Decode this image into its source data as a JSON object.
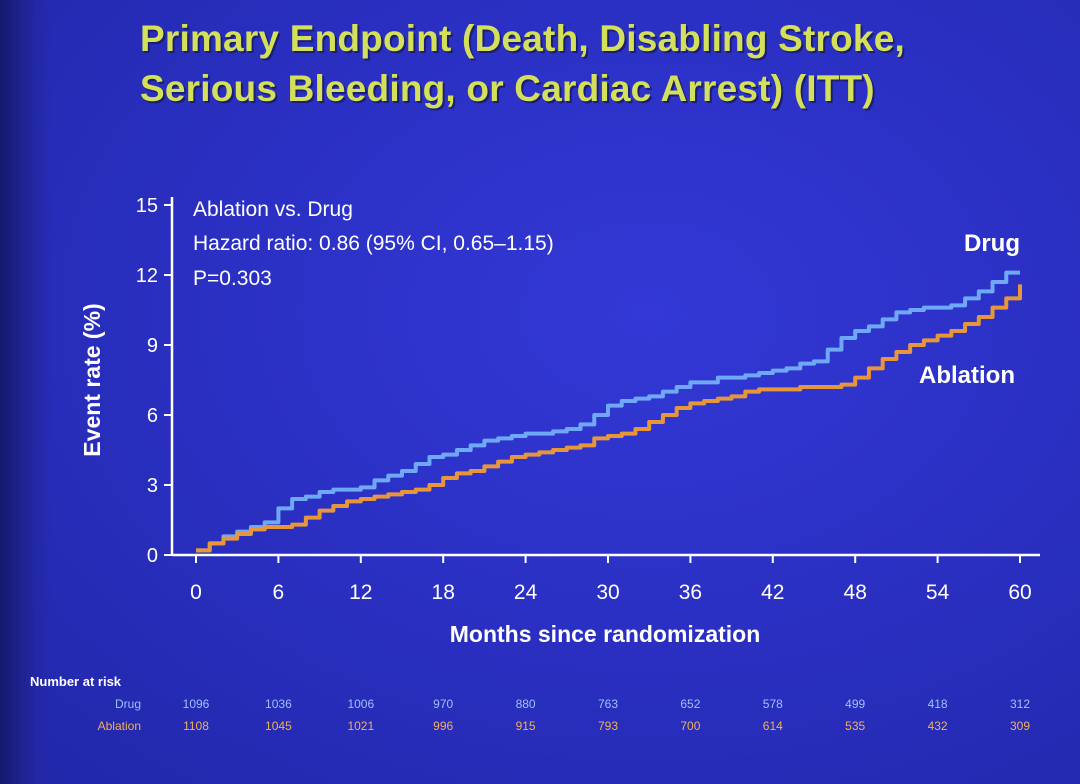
{
  "title_line1": "Primary Endpoint (Death, Disabling Stroke,",
  "title_line2": "Serious Bleeding, or Cardiac Arrest) (ITT)",
  "chart_data": {
    "type": "line",
    "xlabel": "Months since randomization",
    "ylabel": "Event rate (%)",
    "xlim": [
      0,
      60
    ],
    "ylim": [
      0,
      15
    ],
    "xticks": [
      "0",
      "6",
      "12",
      "18",
      "24",
      "30",
      "36",
      "42",
      "48",
      "54",
      "60"
    ],
    "yticks": [
      "0",
      "3",
      "6",
      "9",
      "12",
      "15"
    ],
    "annotations": [
      "Ablation vs. Drug",
      "Hazard ratio: 0.86 (95% CI, 0.65–1.15)",
      "P=0.303"
    ],
    "series": [
      {
        "name": "Drug",
        "color": "#6fa8f5",
        "points": [
          [
            0,
            0.2
          ],
          [
            1,
            0.5
          ],
          [
            2,
            0.8
          ],
          [
            3,
            1.0
          ],
          [
            4,
            1.2
          ],
          [
            5,
            1.4
          ],
          [
            6,
            2.0
          ],
          [
            7,
            2.4
          ],
          [
            8,
            2.5
          ],
          [
            9,
            2.7
          ],
          [
            10,
            2.8
          ],
          [
            11,
            2.8
          ],
          [
            12,
            2.9
          ],
          [
            13,
            3.2
          ],
          [
            14,
            3.4
          ],
          [
            15,
            3.6
          ],
          [
            16,
            3.9
          ],
          [
            17,
            4.2
          ],
          [
            18,
            4.3
          ],
          [
            19,
            4.5
          ],
          [
            20,
            4.7
          ],
          [
            21,
            4.9
          ],
          [
            22,
            5.0
          ],
          [
            23,
            5.1
          ],
          [
            24,
            5.2
          ],
          [
            25,
            5.2
          ],
          [
            26,
            5.3
          ],
          [
            27,
            5.4
          ],
          [
            28,
            5.6
          ],
          [
            29,
            6.0
          ],
          [
            30,
            6.4
          ],
          [
            31,
            6.6
          ],
          [
            32,
            6.7
          ],
          [
            33,
            6.8
          ],
          [
            34,
            7.0
          ],
          [
            35,
            7.2
          ],
          [
            36,
            7.4
          ],
          [
            37,
            7.4
          ],
          [
            38,
            7.6
          ],
          [
            39,
            7.6
          ],
          [
            40,
            7.7
          ],
          [
            41,
            7.8
          ],
          [
            42,
            7.9
          ],
          [
            43,
            8.0
          ],
          [
            44,
            8.2
          ],
          [
            45,
            8.3
          ],
          [
            46,
            8.8
          ],
          [
            47,
            9.3
          ],
          [
            48,
            9.6
          ],
          [
            49,
            9.8
          ],
          [
            50,
            10.1
          ],
          [
            51,
            10.4
          ],
          [
            52,
            10.5
          ],
          [
            53,
            10.6
          ],
          [
            54,
            10.6
          ],
          [
            55,
            10.7
          ],
          [
            56,
            11.0
          ],
          [
            57,
            11.3
          ],
          [
            58,
            11.7
          ],
          [
            59,
            12.1
          ],
          [
            60,
            12.1
          ]
        ]
      },
      {
        "name": "Ablation",
        "color": "#e8963c",
        "points": [
          [
            0,
            0.2
          ],
          [
            1,
            0.5
          ],
          [
            2,
            0.7
          ],
          [
            3,
            0.9
          ],
          [
            4,
            1.1
          ],
          [
            5,
            1.2
          ],
          [
            6,
            1.2
          ],
          [
            7,
            1.3
          ],
          [
            8,
            1.6
          ],
          [
            9,
            1.9
          ],
          [
            10,
            2.1
          ],
          [
            11,
            2.3
          ],
          [
            12,
            2.4
          ],
          [
            13,
            2.5
          ],
          [
            14,
            2.6
          ],
          [
            15,
            2.7
          ],
          [
            16,
            2.8
          ],
          [
            17,
            3.0
          ],
          [
            18,
            3.3
          ],
          [
            19,
            3.5
          ],
          [
            20,
            3.6
          ],
          [
            21,
            3.8
          ],
          [
            22,
            4.0
          ],
          [
            23,
            4.2
          ],
          [
            24,
            4.3
          ],
          [
            25,
            4.4
          ],
          [
            26,
            4.5
          ],
          [
            27,
            4.6
          ],
          [
            28,
            4.7
          ],
          [
            29,
            5.0
          ],
          [
            30,
            5.1
          ],
          [
            31,
            5.2
          ],
          [
            32,
            5.4
          ],
          [
            33,
            5.7
          ],
          [
            34,
            6.0
          ],
          [
            35,
            6.3
          ],
          [
            36,
            6.5
          ],
          [
            37,
            6.6
          ],
          [
            38,
            6.7
          ],
          [
            39,
            6.8
          ],
          [
            40,
            7.0
          ],
          [
            41,
            7.1
          ],
          [
            42,
            7.1
          ],
          [
            43,
            7.1
          ],
          [
            44,
            7.2
          ],
          [
            45,
            7.2
          ],
          [
            46,
            7.2
          ],
          [
            47,
            7.3
          ],
          [
            48,
            7.6
          ],
          [
            49,
            8.0
          ],
          [
            50,
            8.4
          ],
          [
            51,
            8.7
          ],
          [
            52,
            9.0
          ],
          [
            53,
            9.2
          ],
          [
            54,
            9.4
          ],
          [
            55,
            9.6
          ],
          [
            56,
            9.9
          ],
          [
            57,
            10.2
          ],
          [
            58,
            10.6
          ],
          [
            59,
            11.0
          ],
          [
            60,
            11.6
          ]
        ]
      }
    ],
    "number_at_risk": {
      "title": "Number at risk",
      "x": [
        0,
        6,
        12,
        18,
        24,
        30,
        36,
        42,
        48,
        54,
        60
      ],
      "rows": [
        {
          "label": "Drug",
          "values": [
            "1096",
            "1036",
            "1006",
            "970",
            "880",
            "763",
            "652",
            "578",
            "499",
            "418",
            "312"
          ]
        },
        {
          "label": "Ablation",
          "values": [
            "1108",
            "1045",
            "1021",
            "996",
            "915",
            "793",
            "700",
            "614",
            "535",
            "432",
            "309"
          ]
        }
      ]
    }
  }
}
